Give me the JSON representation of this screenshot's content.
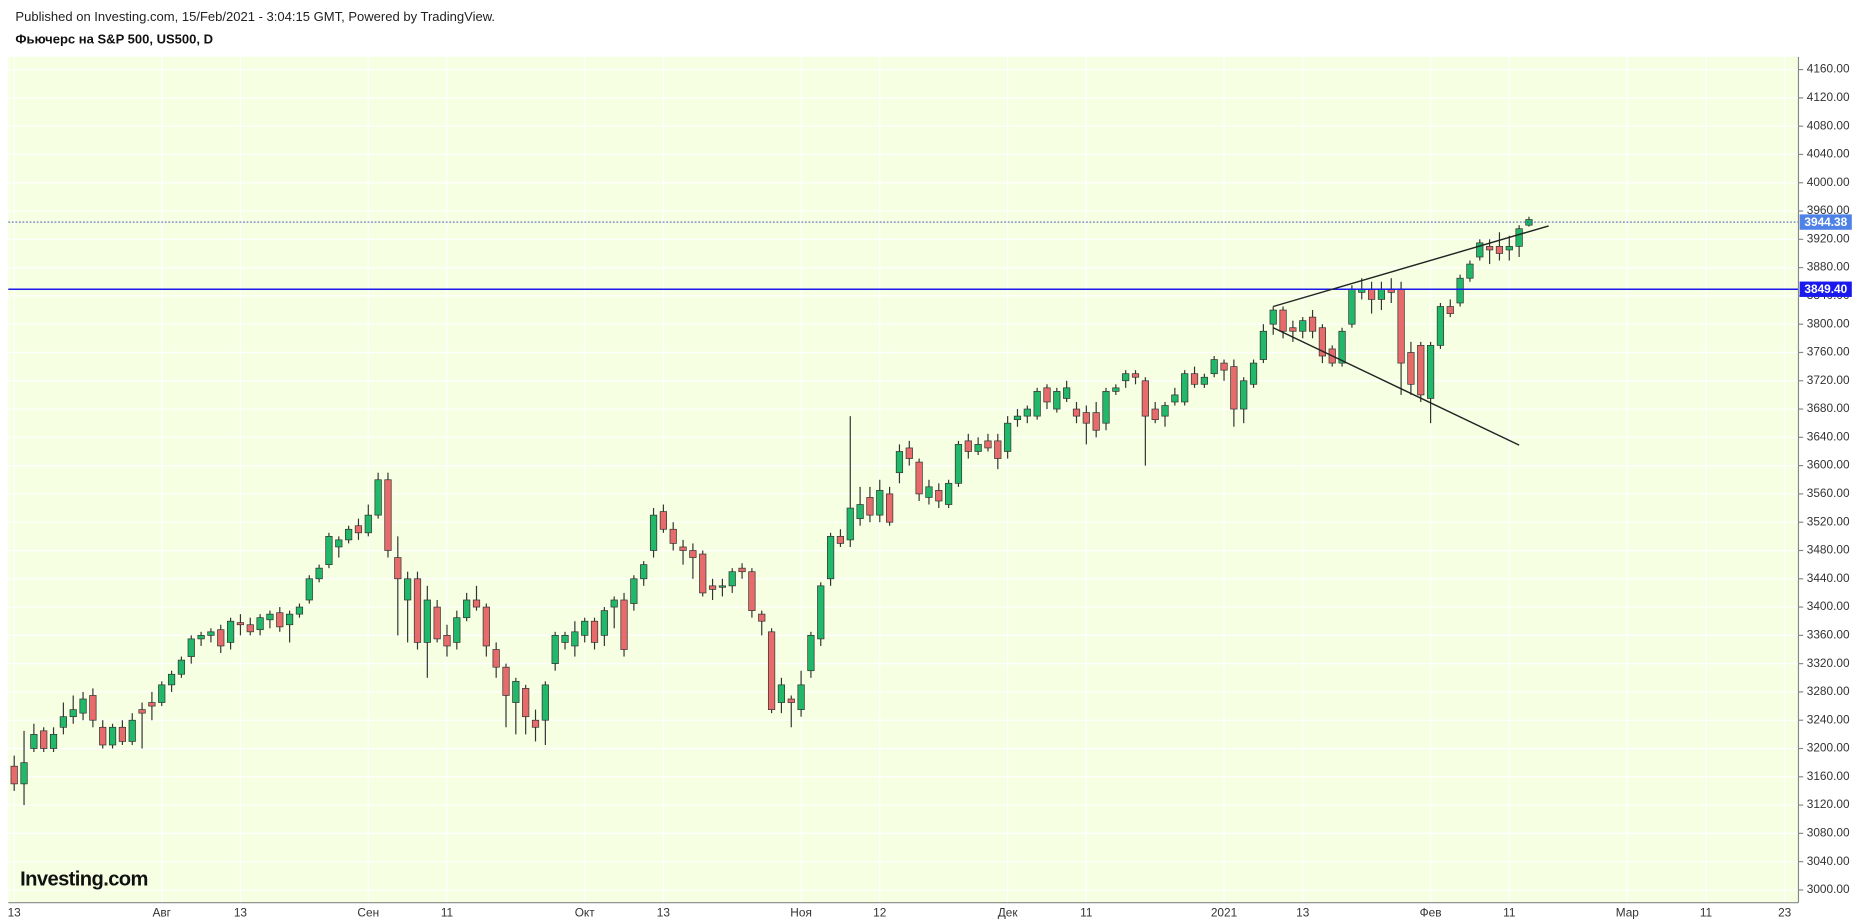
{
  "chart_data": {
    "type": "candlestick",
    "source": "Published on Investing.com, 15/Feb/2021 - 3:04:15 GMT, Powered by TradingView.",
    "title": "Фьючерс на S&P 500, US500, D",
    "logo": "Investing.com",
    "categories": [
      "13",
      null,
      null,
      null,
      null,
      null,
      null,
      null,
      null,
      null,
      null,
      null,
      null,
      null,
      null,
      "Авг",
      null,
      null,
      null,
      null,
      null,
      null,
      null,
      "13",
      null,
      null,
      null,
      null,
      null,
      null,
      null,
      null,
      null,
      null,
      null,
      null,
      "Сен",
      null,
      null,
      null,
      null,
      null,
      null,
      null,
      "11",
      null,
      null,
      null,
      null,
      null,
      null,
      null,
      null,
      null,
      null,
      null,
      null,
      null,
      "Окт",
      null,
      null,
      null,
      null,
      null,
      null,
      null,
      "13",
      null,
      null,
      null,
      null,
      null,
      null,
      null,
      null,
      null,
      null,
      null,
      null,
      null,
      "Ноя",
      null,
      null,
      null,
      null,
      null,
      null,
      null,
      "12",
      null,
      null,
      null,
      null,
      null,
      null,
      null,
      null,
      null,
      null,
      null,
      null,
      "Дек",
      null,
      null,
      null,
      null,
      null,
      null,
      null,
      "11",
      null,
      null,
      null,
      null,
      null,
      null,
      null,
      null,
      null,
      null,
      null,
      null,
      null,
      "2021",
      null,
      null,
      null,
      null,
      null,
      null,
      null,
      "13",
      null,
      null,
      null,
      null,
      null,
      null,
      null,
      null,
      null,
      null,
      null,
      null,
      "Фев",
      null,
      null,
      null,
      null,
      null,
      null,
      null,
      "11",
      null,
      null,
      null,
      null,
      null,
      null,
      null,
      null,
      null,
      null,
      null,
      "Мар",
      null,
      null,
      null,
      null,
      null,
      null,
      null,
      "11",
      null,
      null,
      null,
      null,
      null,
      null,
      null,
      "23",
      null
    ],
    "open": [
      3175,
      3150,
      3200,
      3225,
      3200,
      3230,
      3245,
      3250,
      3275,
      3230,
      3205,
      3230,
      3210,
      3255,
      3265,
      3265,
      3290,
      3305,
      3330,
      3355,
      3360,
      3368,
      3350,
      3378,
      3375,
      3368,
      3382,
      3392,
      3375,
      3390,
      3410,
      3440,
      3460,
      3485,
      3495,
      3515,
      3505,
      3530,
      3580,
      3470,
      3410,
      3440,
      3350,
      3400,
      3360,
      3350,
      3385,
      3410,
      3400,
      3340,
      3315,
      3265,
      3285,
      3240,
      3240,
      3320,
      3350,
      3345,
      3360,
      3380,
      3360,
      3400,
      3410,
      3405,
      3440,
      3480,
      3535,
      3510,
      3485,
      3480,
      3475,
      3430,
      3428,
      3430,
      3455,
      3450,
      3390,
      3365,
      3265,
      3270,
      3255,
      3310,
      3355,
      3440,
      3500,
      3495,
      3525,
      3555,
      3530,
      3560,
      3590,
      3625,
      3605,
      3555,
      3565,
      3545,
      3575,
      3635,
      3620,
      3635,
      3635,
      3620,
      3665,
      3670,
      3670,
      3710,
      3680,
      3695,
      3680,
      3675,
      3675,
      3660,
      3705,
      3720,
      3730,
      3720,
      3680,
      3670,
      3690,
      3690,
      3730,
      3715,
      3730,
      3745,
      3740,
      3680,
      3715,
      3750,
      3800,
      3820,
      3795,
      3790,
      3810,
      3795,
      3765,
      3745,
      3800,
      3845,
      3850,
      3835,
      3850,
      3850,
      3760,
      3770,
      3695,
      3770,
      3825,
      3830,
      3865,
      3895,
      3910,
      3910,
      3905,
      3910,
      3940,
      null,
      null,
      null,
      null,
      null,
      null,
      null,
      null,
      null,
      null,
      null,
      null,
      null,
      null,
      null,
      null,
      null,
      null,
      null,
      null,
      null,
      null,
      null,
      null,
      null,
      null,
      null
    ],
    "high": [
      3190,
      3225,
      3235,
      3230,
      3230,
      3265,
      3275,
      3280,
      3285,
      3240,
      3235,
      3240,
      3250,
      3265,
      3280,
      3295,
      3310,
      3330,
      3360,
      3365,
      3370,
      3375,
      3385,
      3390,
      3385,
      3390,
      3395,
      3400,
      3395,
      3405,
      3445,
      3460,
      3505,
      3500,
      3515,
      3525,
      3545,
      3590,
      3590,
      3500,
      3450,
      3450,
      3430,
      3410,
      3375,
      3395,
      3420,
      3430,
      3405,
      3350,
      3320,
      3300,
      3290,
      3255,
      3295,
      3365,
      3365,
      3380,
      3385,
      3385,
      3400,
      3415,
      3420,
      3445,
      3465,
      3540,
      3545,
      3520,
      3495,
      3490,
      3480,
      3440,
      3440,
      3455,
      3462,
      3455,
      3395,
      3370,
      3300,
      3275,
      3310,
      3365,
      3435,
      3505,
      3510,
      3670,
      3570,
      3570,
      3580,
      3570,
      3630,
      3635,
      3610,
      3580,
      3575,
      3580,
      3635,
      3645,
      3640,
      3645,
      3645,
      3670,
      3680,
      3685,
      3710,
      3715,
      3710,
      3720,
      3690,
      3685,
      3690,
      3710,
      3715,
      3735,
      3735,
      3725,
      3690,
      3690,
      3710,
      3735,
      3740,
      3730,
      3755,
      3750,
      3750,
      3725,
      3750,
      3800,
      3825,
      3825,
      3805,
      3810,
      3820,
      3800,
      3770,
      3795,
      3855,
      3865,
      3860,
      3860,
      3865,
      3860,
      3775,
      3775,
      3775,
      3830,
      3835,
      3870,
      3890,
      3920,
      3920,
      3930,
      3925,
      3940,
      3952,
      null,
      null,
      null,
      null,
      null,
      null,
      null,
      null,
      null,
      null,
      null,
      null,
      null,
      null,
      null,
      null,
      null,
      null,
      null,
      null,
      null,
      null,
      null,
      null,
      null,
      null,
      null
    ],
    "low": [
      3140,
      3120,
      3195,
      3195,
      3195,
      3220,
      3235,
      3240,
      3230,
      3200,
      3200,
      3205,
      3205,
      3200,
      3240,
      3260,
      3280,
      3300,
      3320,
      3345,
      3350,
      3335,
      3340,
      3360,
      3360,
      3360,
      3370,
      3365,
      3350,
      3385,
      3405,
      3435,
      3455,
      3470,
      3490,
      3495,
      3500,
      3525,
      3470,
      3360,
      3350,
      3340,
      3300,
      3350,
      3330,
      3340,
      3380,
      3395,
      3330,
      3300,
      3230,
      3220,
      3220,
      3210,
      3205,
      3310,
      3340,
      3330,
      3350,
      3340,
      3345,
      3370,
      3330,
      3395,
      3430,
      3470,
      3505,
      3480,
      3460,
      3440,
      3415,
      3410,
      3415,
      3420,
      3440,
      3385,
      3360,
      3250,
      3250,
      3230,
      3245,
      3300,
      3345,
      3430,
      3485,
      3485,
      3515,
      3520,
      3520,
      3515,
      3575,
      3600,
      3550,
      3545,
      3540,
      3540,
      3570,
      3610,
      3615,
      3620,
      3595,
      3610,
      3655,
      3660,
      3665,
      3680,
      3675,
      3690,
      3660,
      3630,
      3640,
      3650,
      3700,
      3710,
      3715,
      3600,
      3660,
      3655,
      3685,
      3685,
      3710,
      3710,
      3725,
      3720,
      3655,
      3660,
      3710,
      3745,
      3785,
      3780,
      3775,
      3780,
      3780,
      3745,
      3740,
      3740,
      3795,
      3835,
      3815,
      3820,
      3830,
      3700,
      3700,
      3690,
      3660,
      3765,
      3810,
      3825,
      3860,
      3890,
      3885,
      3890,
      3890,
      3895,
      3938,
      null,
      null,
      null,
      null,
      null,
      null,
      null,
      null,
      null,
      null,
      null,
      null,
      null,
      null,
      null,
      null,
      null,
      null,
      null,
      null,
      null,
      null,
      null,
      null,
      null,
      null,
      null
    ],
    "close": [
      3150,
      3180,
      3220,
      3200,
      3220,
      3245,
      3255,
      3270,
      3240,
      3205,
      3230,
      3210,
      3240,
      3250,
      3260,
      3290,
      3305,
      3325,
      3355,
      3360,
      3365,
      3345,
      3380,
      3375,
      3365,
      3385,
      3390,
      3372,
      3390,
      3400,
      3440,
      3455,
      3500,
      3495,
      3510,
      3505,
      3530,
      3580,
      3480,
      3440,
      3440,
      3350,
      3410,
      3355,
      3345,
      3385,
      3410,
      3400,
      3345,
      3315,
      3275,
      3295,
      3245,
      3230,
      3290,
      3360,
      3360,
      3365,
      3380,
      3350,
      3395,
      3410,
      3340,
      3440,
      3460,
      3530,
      3510,
      3490,
      3480,
      3470,
      3420,
      3425,
      3430,
      3450,
      3450,
      3395,
      3380,
      3255,
      3290,
      3265,
      3290,
      3360,
      3430,
      3500,
      3490,
      3540,
      3545,
      3530,
      3565,
      3520,
      3620,
      3610,
      3560,
      3570,
      3550,
      3575,
      3630,
      3620,
      3630,
      3625,
      3610,
      3660,
      3670,
      3680,
      3705,
      3690,
      3705,
      3710,
      3670,
      3660,
      3650,
      3705,
      3710,
      3730,
      3725,
      3670,
      3665,
      3685,
      3700,
      3730,
      3715,
      3725,
      3750,
      3735,
      3680,
      3720,
      3745,
      3790,
      3820,
      3790,
      3790,
      3805,
      3790,
      3755,
      3745,
      3790,
      3850,
      3850,
      3835,
      3850,
      3845,
      3745,
      3715,
      3700,
      3770,
      3825,
      3815,
      3865,
      3885,
      3915,
      3905,
      3900,
      3910,
      3935,
      3948,
      null,
      null,
      null,
      null,
      null,
      null,
      null,
      null,
      null,
      null,
      null,
      null,
      null,
      null,
      null,
      null,
      null,
      null,
      null,
      null,
      null,
      null,
      null,
      null,
      null,
      null,
      null
    ],
    "up_color": "#22b86a",
    "down_color": "#e86b6b",
    "background": "#f6ffe2",
    "grid": true,
    "grid_color": "#ffffff",
    "ylim": [
      2982,
      4178
    ],
    "yticks": [
      {
        "value": 3000,
        "label": "3000.00"
      },
      {
        "value": 3040,
        "label": "3040.00"
      },
      {
        "value": 3080,
        "label": "3080.00"
      },
      {
        "value": 3120,
        "label": "3120.00"
      },
      {
        "value": 3160,
        "label": "3160.00"
      },
      {
        "value": 3200,
        "label": "3200.00"
      },
      {
        "value": 3240,
        "label": "3240.00"
      },
      {
        "value": 3280,
        "label": "3280.00"
      },
      {
        "value": 3320,
        "label": "3320.00"
      },
      {
        "value": 3360,
        "label": "3360.00"
      },
      {
        "value": 3400,
        "label": "3400.00"
      },
      {
        "value": 3440,
        "label": "3440.00"
      },
      {
        "value": 3480,
        "label": "3480.00"
      },
      {
        "value": 3520,
        "label": "3520.00"
      },
      {
        "value": 3560,
        "label": "3560.00"
      },
      {
        "value": 3600,
        "label": "3600.00"
      },
      {
        "value": 3640,
        "label": "3640.00"
      },
      {
        "value": 3680,
        "label": "3680.00"
      },
      {
        "value": 3720,
        "label": "3720.00"
      },
      {
        "value": 3760,
        "label": "3760.00"
      },
      {
        "value": 3800,
        "label": "3800.00"
      },
      {
        "value": 3840,
        "label": "3840.00"
      },
      {
        "value": 3880,
        "label": "3880.00"
      },
      {
        "value": 3920,
        "label": "3920.00"
      },
      {
        "value": 3960,
        "label": "3960.00"
      },
      {
        "value": 4000,
        "label": "4000.00"
      },
      {
        "value": 4040,
        "label": "4040.00"
      },
      {
        "value": 4080,
        "label": "4080.00"
      },
      {
        "value": 4120,
        "label": "4120.00"
      },
      {
        "value": 4160,
        "label": "4160.00"
      }
    ],
    "hlines": [
      {
        "value": 3944.38,
        "color": "#2a3fb0",
        "style": "dotted",
        "label_color": "#4f82e6"
      },
      {
        "value": 3849.4,
        "label": "3849.40",
        "color": "#1a1aee",
        "style": "solid",
        "label_color": "#1a1aee"
      }
    ],
    "trendlines": [
      {
        "from": [
          128,
          3825
        ],
        "to": [
          156,
          3939
        ],
        "color": "#222222"
      },
      {
        "from": [
          128,
          3795
        ],
        "to": [
          153,
          3629
        ],
        "color": "#222222"
      }
    ]
  }
}
